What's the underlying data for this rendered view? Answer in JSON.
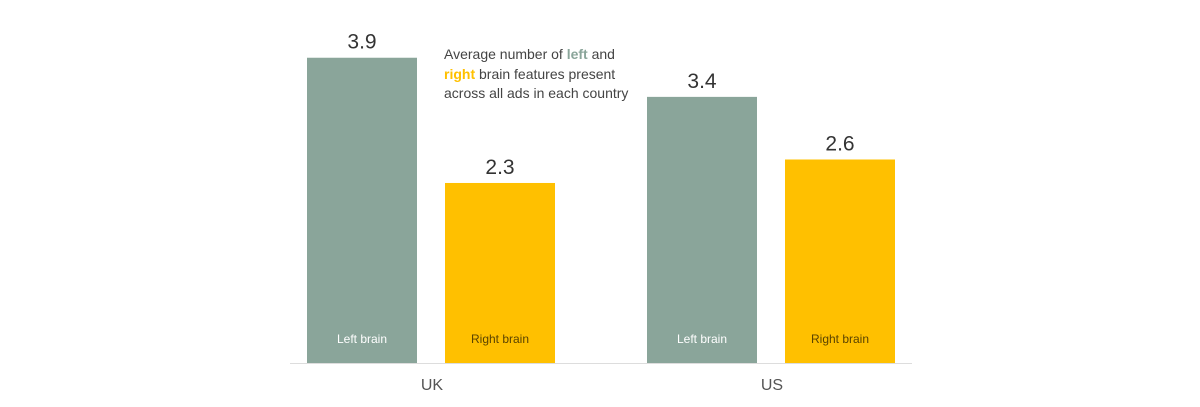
{
  "colors": {
    "left": "#8aa59a",
    "right": "#ffc000",
    "axis": "#dddddd",
    "bar_label_on_left": "#ffffff",
    "bar_label_on_right": "#5a4300"
  },
  "annotation": {
    "text_1": "Average number of ",
    "left_word": "left",
    "text_2": " and ",
    "right_word": "right",
    "text_3": " brain features present across all ads in each country"
  },
  "chart_data": {
    "type": "bar",
    "categories": [
      "UK",
      "US"
    ],
    "series": [
      {
        "name": "Left brain",
        "values": [
          3.9,
          3.4
        ],
        "value_labels": [
          "3.9",
          "3.4"
        ]
      },
      {
        "name": "Right brain",
        "values": [
          2.3,
          2.6
        ],
        "value_labels": [
          "2.3",
          "2.6"
        ]
      }
    ],
    "title": "",
    "xlabel": "",
    "ylabel": "",
    "ylim": [
      0,
      4.05
    ],
    "grid": false,
    "legend": "none"
  }
}
